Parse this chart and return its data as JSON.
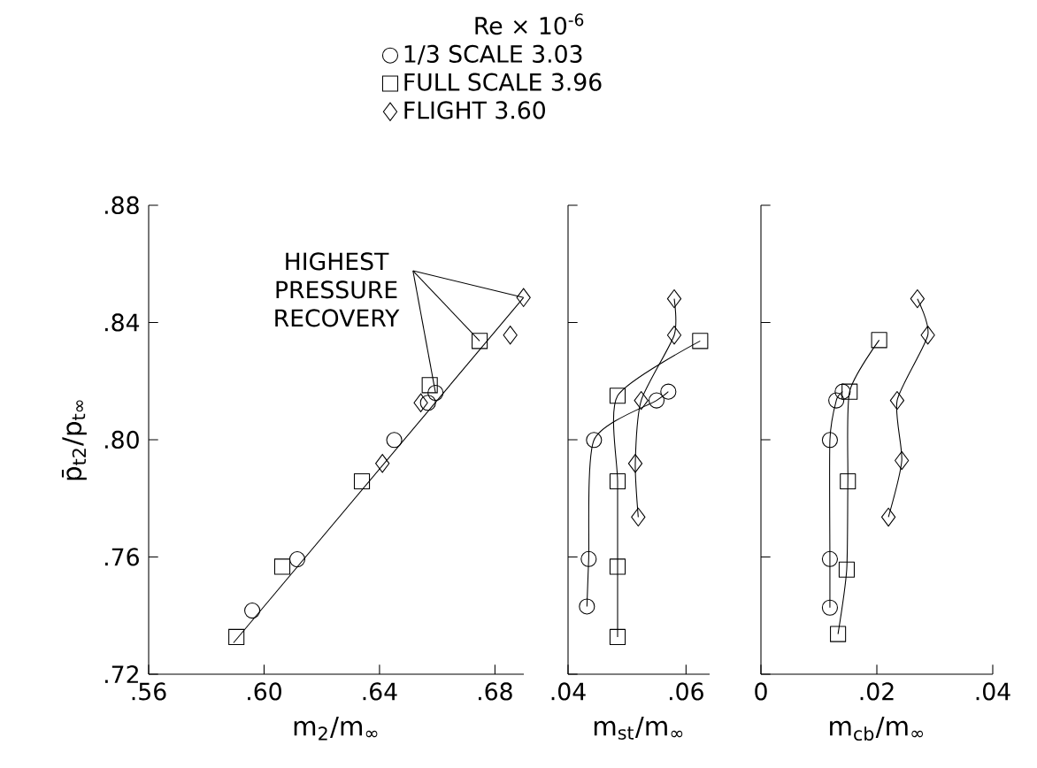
{
  "chart_data": [
    {
      "type": "scatter",
      "xlabel": "m$_{2}$/m$_{∞}$",
      "ylabel": "p̄$_{t2}$/p$_{t∞}$",
      "legend_title": "Re × 10$^{-6}$",
      "legend": "top",
      "annotations": [
        {
          "text": "HIGHEST PRESSURE RECOVERY",
          "x": 0.6899,
          "y": 0.8485
        }
      ],
      "xlim": [
        0.56,
        0.69
      ],
      "xticks": [
        {
          "value": 0.56,
          "label": ".56"
        },
        {
          "value": 0.6,
          "label": ".60"
        },
        {
          "value": 0.64,
          "label": ".64"
        },
        {
          "value": 0.68,
          "label": ".68"
        }
      ],
      "ylim": [
        0.72,
        0.88
      ],
      "yticks": [
        {
          "value": 0.72,
          "label": ".72"
        },
        {
          "value": 0.76,
          "label": ".76"
        },
        {
          "value": 0.8,
          "label": ".80"
        },
        {
          "value": 0.84,
          "label": ".84"
        },
        {
          "value": 0.88,
          "label": ".88"
        }
      ],
      "series": [
        {
          "name": "1/3 SCALE 3.03",
          "color": "#000000",
          "marker": "circle",
          "x": [
            0.5959,
            0.6115,
            0.6451,
            0.6568,
            0.6594
          ],
          "values": [
            0.7417,
            0.7592,
            0.7999,
            0.8126,
            0.816
          ]
        },
        {
          "name": "FULL SCALE 3.96",
          "color": "#000000",
          "marker": "square",
          "x": [
            0.5904,
            0.6063,
            0.6339,
            0.6574,
            0.6747
          ],
          "values": [
            0.7327,
            0.7567,
            0.7858,
            0.8186,
            0.8337
          ]
        },
        {
          "name": "FLIGHT 3.60",
          "color": "#000000",
          "marker": "diamond",
          "x": [
            0.641,
            0.6543,
            0.6853,
            0.6899
          ],
          "values": [
            0.7919,
            0.8126,
            0.8357,
            0.8485
          ]
        },
        {
          "type": "line",
          "color": "#000000",
          "marker": "none",
          "x": [
            0.5894,
            0.6899
          ],
          "values": [
            0.7307,
            0.8485
          ]
        }
      ]
    },
    {
      "type": "line",
      "xlabel": "m$_{st}$/m$_{∞}$",
      "tick_labels": "x",
      "line_style": "solid",
      "xlim": [
        0.04,
        0.064
      ],
      "xticks": [
        {
          "value": 0.04,
          "label": ".04"
        },
        {
          "value": 0.06,
          "label": ".06"
        }
      ],
      "ylim": [
        0.72,
        0.88
      ],
      "yticks": [
        {
          "value": 0.72,
          "label": null
        },
        {
          "value": 0.76,
          "label": null
        },
        {
          "value": 0.8,
          "label": null
        },
        {
          "value": 0.84,
          "label": null
        },
        {
          "value": 0.88,
          "label": null
        }
      ],
      "series": [
        {
          "color": "#000000",
          "marker": "circle",
          "x": [
            0.0432,
            0.0435,
            0.0444,
            0.055,
            0.057
          ],
          "values": [
            0.7431,
            0.7593,
            0.7999,
            0.8134,
            0.8164
          ]
        },
        {
          "color": "#000000",
          "marker": "square",
          "x": [
            0.0484,
            0.0484,
            0.0484,
            0.0484,
            0.0624
          ],
          "values": [
            0.7327,
            0.7567,
            0.7858,
            0.815,
            0.8337
          ]
        },
        {
          "color": "#000000",
          "marker": "diamond",
          "x": [
            0.0519,
            0.0514,
            0.0524,
            0.058,
            0.058
          ],
          "values": [
            0.7736,
            0.7919,
            0.8134,
            0.8357,
            0.8481
          ]
        }
      ]
    },
    {
      "type": "line",
      "xlabel": "m$_{cb}$/m$_{∞}$",
      "tick_labels": "x",
      "line_style": "solid",
      "xlim": [
        0,
        0.04
      ],
      "xticks": [
        0,
        {
          "value": 0.02,
          "label": ".02"
        },
        {
          "value": 0.04,
          "label": ".04"
        }
      ],
      "ylim": [
        0.72,
        0.88
      ],
      "yticks": [
        {
          "value": 0.72,
          "label": null
        },
        {
          "value": 0.76,
          "label": null
        },
        {
          "value": 0.8,
          "label": null
        },
        {
          "value": 0.84,
          "label": null
        },
        {
          "value": 0.88,
          "label": null
        }
      ],
      "series": [
        {
          "color": "#000000",
          "marker": "circle",
          "x": [
            0.0119,
            0.0119,
            0.0119,
            0.013,
            0.0141
          ],
          "values": [
            0.7427,
            0.7593,
            0.7999,
            0.8134,
            0.8164
          ]
        },
        {
          "color": "#000000",
          "marker": "square",
          "x": [
            0.0133,
            0.0148,
            0.015,
            0.0153,
            0.0204
          ],
          "values": [
            0.7337,
            0.7557,
            0.7858,
            0.8164,
            0.834
          ]
        },
        {
          "color": "#000000",
          "marker": "diamond",
          "x": [
            0.022,
            0.0243,
            0.0235,
            0.0288,
            0.027
          ],
          "values": [
            0.7736,
            0.7929,
            0.8134,
            0.8357,
            0.8481
          ]
        }
      ]
    }
  ]
}
